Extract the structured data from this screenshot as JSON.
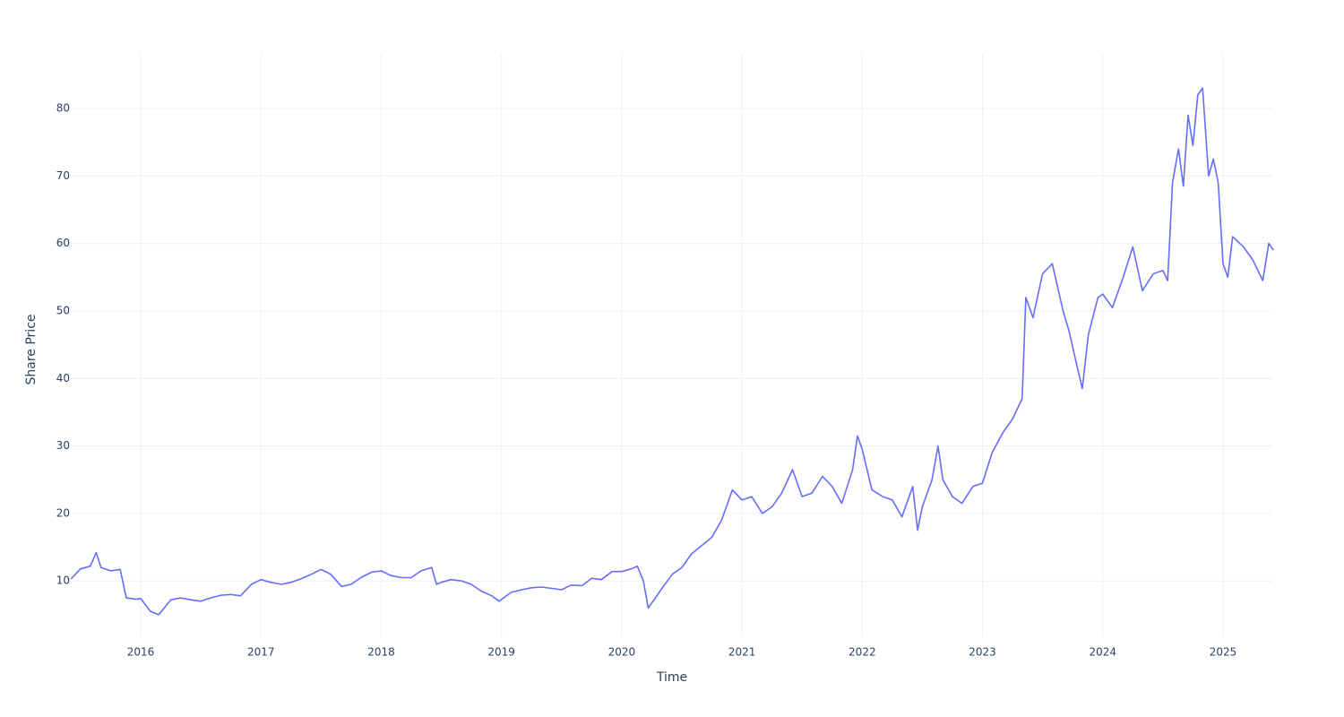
{
  "chart_data": {
    "type": "line",
    "x_label": "Time",
    "y_label": "Share Price",
    "x": [
      2015.42,
      2015.5,
      2015.58,
      2015.63,
      2015.67,
      2015.75,
      2015.83,
      2015.88,
      2015.96,
      2016.0,
      2016.08,
      2016.15,
      2016.25,
      2016.33,
      2016.42,
      2016.5,
      2016.58,
      2016.67,
      2016.75,
      2016.83,
      2016.92,
      2017.0,
      2017.08,
      2017.17,
      2017.25,
      2017.33,
      2017.42,
      2017.5,
      2017.58,
      2017.67,
      2017.75,
      2017.83,
      2017.92,
      2018.0,
      2018.08,
      2018.17,
      2018.25,
      2018.33,
      2018.42,
      2018.46,
      2018.5,
      2018.58,
      2018.67,
      2018.75,
      2018.83,
      2018.92,
      2018.98,
      2019.08,
      2019.17,
      2019.25,
      2019.33,
      2019.42,
      2019.5,
      2019.58,
      2019.67,
      2019.75,
      2019.83,
      2019.92,
      2020.0,
      2020.08,
      2020.13,
      2020.18,
      2020.22,
      2020.28,
      2020.33,
      2020.42,
      2020.5,
      2020.58,
      2020.67,
      2020.75,
      2020.83,
      2020.92,
      2021.0,
      2021.08,
      2021.17,
      2021.25,
      2021.33,
      2021.42,
      2021.5,
      2021.58,
      2021.67,
      2021.75,
      2021.83,
      2021.92,
      2021.96,
      2022.0,
      2022.08,
      2022.17,
      2022.25,
      2022.33,
      2022.42,
      2022.46,
      2022.5,
      2022.58,
      2022.63,
      2022.67,
      2022.75,
      2022.83,
      2022.92,
      2023.0,
      2023.08,
      2023.17,
      2023.25,
      2023.33,
      2023.36,
      2023.42,
      2023.5,
      2023.58,
      2023.67,
      2023.72,
      2023.79,
      2023.83,
      2023.88,
      2023.96,
      2024.0,
      2024.08,
      2024.17,
      2024.25,
      2024.33,
      2024.42,
      2024.5,
      2024.54,
      2024.58,
      2024.63,
      2024.67,
      2024.71,
      2024.75,
      2024.79,
      2024.83,
      2024.88,
      2024.92,
      2024.96,
      2025.0,
      2025.04,
      2025.08,
      2025.17,
      2025.25,
      2025.33,
      2025.38,
      2025.42
    ],
    "series": [
      {
        "color": "#636efa",
        "values": [
          10.3,
          11.8,
          12.2,
          14.2,
          12.0,
          11.5,
          11.7,
          7.5,
          7.3,
          7.4,
          5.5,
          5.0,
          7.2,
          7.5,
          7.2,
          7.0,
          7.5,
          7.9,
          8.0,
          7.8,
          9.5,
          10.2,
          9.8,
          9.5,
          9.8,
          10.3,
          11.0,
          11.7,
          11.0,
          9.2,
          9.5,
          10.5,
          11.3,
          11.5,
          10.8,
          10.5,
          10.5,
          11.5,
          12.0,
          9.5,
          9.8,
          10.2,
          10.0,
          9.5,
          8.5,
          7.8,
          7.0,
          8.3,
          8.7,
          9.0,
          9.1,
          8.9,
          8.7,
          9.4,
          9.3,
          10.4,
          10.2,
          11.4,
          11.4,
          11.8,
          12.2,
          10.0,
          6.0,
          7.5,
          8.8,
          11.0,
          12.0,
          14.0,
          15.3,
          16.5,
          19.0,
          23.5,
          22.0,
          22.5,
          20.0,
          21.0,
          23.0,
          26.5,
          22.5,
          23.0,
          25.5,
          24.0,
          21.5,
          26.5,
          31.5,
          29.5,
          23.5,
          22.5,
          22.0,
          19.5,
          24.0,
          17.5,
          21.0,
          25.0,
          30.0,
          25.0,
          22.5,
          21.5,
          24.0,
          24.5,
          29.0,
          32.0,
          34.0,
          37.0,
          52.0,
          49.0,
          55.5,
          57.0,
          50.0,
          47.0,
          41.5,
          38.5,
          46.5,
          52.0,
          52.5,
          50.5,
          55.0,
          59.5,
          53.0,
          55.5,
          56.0,
          54.5,
          69.0,
          74.0,
          68.5,
          79.0,
          74.5,
          82.0,
          83.0,
          70.0,
          72.5,
          69.0,
          57.0,
          55.0,
          61.0,
          59.5,
          57.5,
          54.5,
          60.0,
          59.0
        ]
      }
    ],
    "xlim": [
      2015.426,
      2025.41
    ],
    "xticks": [
      2016,
      2017,
      2018,
      2019,
      2020,
      2021,
      2022,
      2023,
      2024,
      2025
    ],
    "ylim": [
      1.8,
      88.1
    ],
    "yticks": [
      10,
      20,
      30,
      40,
      50,
      60,
      70,
      80
    ],
    "grid": true
  }
}
